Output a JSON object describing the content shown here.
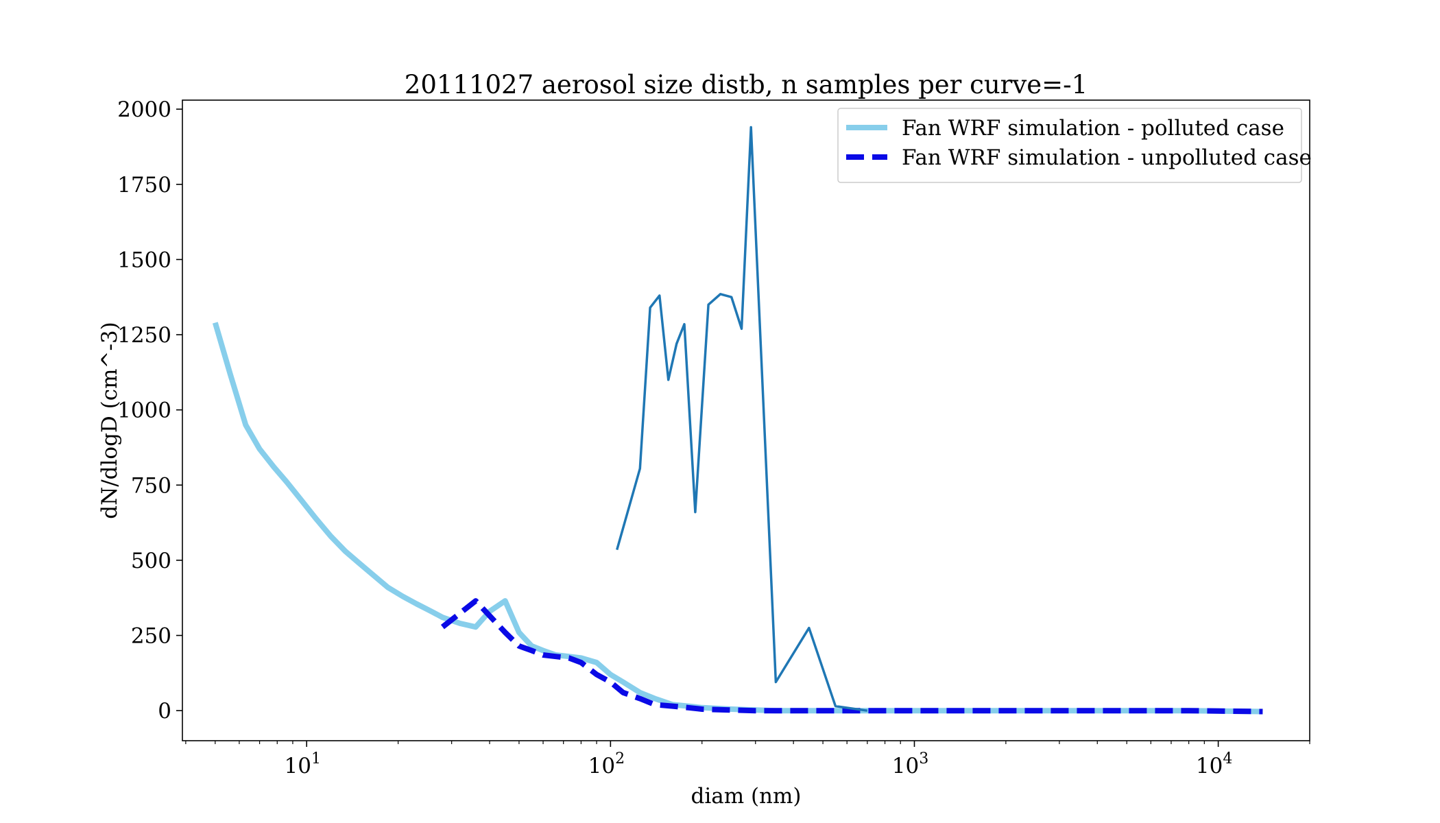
{
  "chart_data": {
    "type": "line",
    "title": "20111027 aerosol size distb, n samples per curve=-1",
    "xlabel": "diam (nm)",
    "ylabel": "dN/dlogD (cm^-3)",
    "xscale": "log",
    "xlim": [
      3.9,
      20000
    ],
    "ylim": [
      -100,
      2030
    ],
    "xticks": [
      {
        "value": 10,
        "label": "10",
        "exp": "1"
      },
      {
        "value": 100,
        "label": "10",
        "exp": "2"
      },
      {
        "value": 1000,
        "label": "10",
        "exp": "3"
      },
      {
        "value": 10000,
        "label": "10",
        "exp": "4"
      }
    ],
    "yticks": [
      0,
      250,
      500,
      750,
      1000,
      1250,
      1500,
      1750,
      2000
    ],
    "grid": false,
    "legend_position": "top-right",
    "series": [
      {
        "name": "Fan WRF simulation - polluted case",
        "style": "solid",
        "color": "#87ceeb",
        "x": [
          5.0,
          5.6,
          6.3,
          7.0,
          7.8,
          8.6,
          9.6,
          10.7,
          12.0,
          13.4,
          14.9,
          16.6,
          18.5,
          20.7,
          23.0,
          25.7,
          28.0,
          32.0,
          36.0,
          40.0,
          45.0,
          50.0,
          55.0,
          60.0,
          66.0,
          73.0,
          80.0,
          90.0,
          100.0,
          110.0,
          125.0,
          140.0,
          160.0,
          180.0,
          200.0,
          250.0,
          300.0,
          350.0,
          400.0,
          500.0,
          600.0,
          700.0,
          800.0,
          1000.0,
          1500.0,
          2000.0,
          3000.0,
          5000.0,
          8000.0,
          14000.0
        ],
        "y": [
          1290,
          1120,
          950,
          870,
          810,
          760,
          700,
          640,
          580,
          530,
          490,
          450,
          410,
          380,
          355,
          330,
          310,
          290,
          278,
          330,
          365,
          260,
          215,
          200,
          185,
          180,
          175,
          160,
          120,
          95,
          60,
          40,
          20,
          15,
          10,
          5,
          2,
          0,
          0,
          0,
          0,
          0,
          0,
          0,
          0,
          0,
          0,
          0,
          0,
          -3
        ]
      },
      {
        "name": "Fan WRF simulation - unpolluted case",
        "style": "dashed",
        "color": "#0a0ae6",
        "x": [
          28.0,
          36.0,
          45.0,
          50.0,
          55.0,
          60.0,
          66.0,
          73.0,
          80.0,
          90.0,
          100.0,
          110.0,
          125.0,
          140.0,
          160.0,
          180.0,
          200.0,
          250.0,
          300.0,
          350.0,
          400.0,
          500.0,
          600.0,
          700.0,
          800.0,
          1000.0,
          1500.0,
          2000.0,
          3000.0,
          5000.0,
          8000.0,
          14000.0
        ],
        "y": [
          278,
          365,
          260,
          215,
          200,
          185,
          180,
          175,
          160,
          120,
          95,
          60,
          40,
          20,
          15,
          10,
          5,
          2,
          0,
          0,
          0,
          0,
          0,
          0,
          0,
          0,
          0,
          0,
          0,
          0,
          0,
          -3
        ]
      },
      {
        "name": "",
        "style": "solid",
        "color": "#1f77b4",
        "x": [
          105,
          125,
          135,
          145,
          155,
          165,
          175,
          190,
          210,
          230,
          250,
          270,
          290,
          350,
          450,
          550,
          700
        ],
        "y": [
          535,
          805,
          1340,
          1380,
          1100,
          1220,
          1285,
          660,
          1350,
          1385,
          1375,
          1270,
          1940,
          95,
          275,
          15,
          0
        ]
      }
    ]
  }
}
